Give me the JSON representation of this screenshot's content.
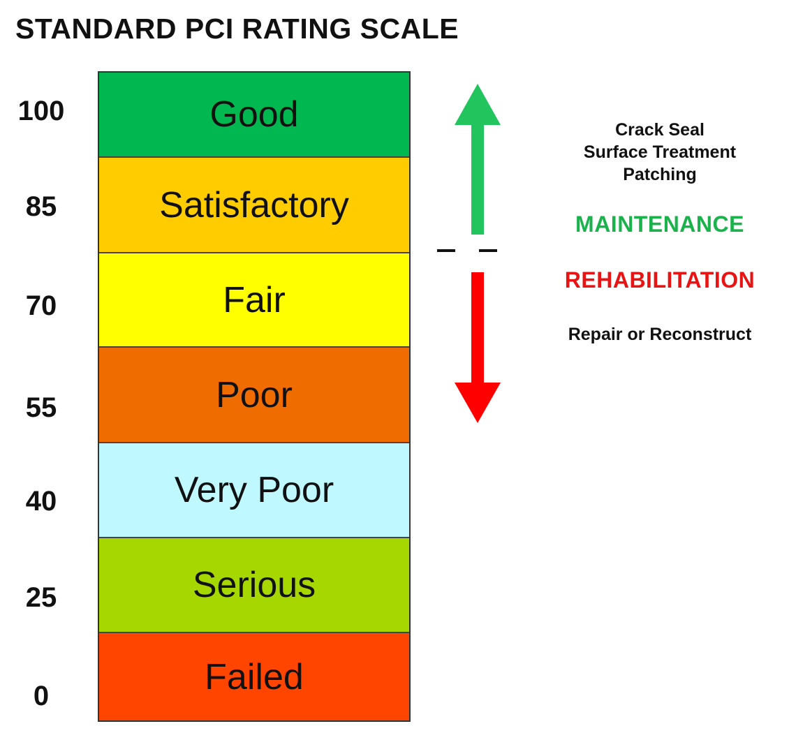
{
  "title": "STANDARD PCI RATING SCALE",
  "scale_ticks": [
    "100",
    "85",
    "70",
    "55",
    "40",
    "25",
    "0"
  ],
  "bands": [
    {
      "label": "Good",
      "color": "#00b84f"
    },
    {
      "label": "Satisfactory",
      "color": "#ffcc00"
    },
    {
      "label": "Fair",
      "color": "#ffff00"
    },
    {
      "label": "Poor",
      "color": "#ef6c00"
    },
    {
      "label": "Very Poor",
      "color": "#bff8ff"
    },
    {
      "label": "Serious",
      "color": "#a6d800"
    },
    {
      "label": "Failed",
      "color": "#ff4500"
    }
  ],
  "maintenance": {
    "treatments": [
      "Crack Seal",
      "Surface Treatment",
      "Patching"
    ],
    "label": "MAINTENANCE",
    "color": "#19b24b",
    "arrow_direction": "up"
  },
  "rehabilitation": {
    "label": "REHABILITATION",
    "description": "Repair or Reconstruct",
    "color": "#e81313",
    "arrow_direction": "down"
  }
}
